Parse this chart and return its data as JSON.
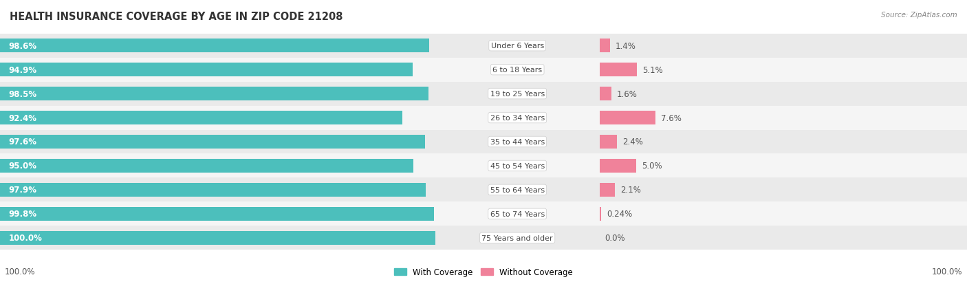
{
  "title": "HEALTH INSURANCE COVERAGE BY AGE IN ZIP CODE 21208",
  "source": "Source: ZipAtlas.com",
  "categories": [
    "Under 6 Years",
    "6 to 18 Years",
    "19 to 25 Years",
    "26 to 34 Years",
    "35 to 44 Years",
    "45 to 54 Years",
    "55 to 64 Years",
    "65 to 74 Years",
    "75 Years and older"
  ],
  "with_coverage": [
    98.6,
    94.9,
    98.5,
    92.4,
    97.6,
    95.0,
    97.9,
    99.8,
    100.0
  ],
  "without_coverage": [
    1.4,
    5.1,
    1.6,
    7.6,
    2.4,
    5.0,
    2.1,
    0.24,
    0.0
  ],
  "with_coverage_labels": [
    "98.6%",
    "94.9%",
    "98.5%",
    "92.4%",
    "97.6%",
    "95.0%",
    "97.9%",
    "99.8%",
    "100.0%"
  ],
  "without_coverage_labels": [
    "1.4%",
    "5.1%",
    "1.6%",
    "7.6%",
    "2.4%",
    "5.0%",
    "2.1%",
    "0.24%",
    "0.0%"
  ],
  "color_with": "#4CBFBC",
  "color_without": "#F0829A",
  "row_bg_even": "#EAEAEA",
  "row_bg_odd": "#F5F5F5",
  "legend_label_with": "With Coverage",
  "legend_label_without": "Without Coverage",
  "bottom_left_label": "100.0%",
  "bottom_right_label": "100.0%",
  "title_fontsize": 10.5,
  "label_fontsize": 8.5,
  "bar_height": 0.58,
  "figsize": [
    14.06,
    4.14
  ],
  "dpi": 100
}
